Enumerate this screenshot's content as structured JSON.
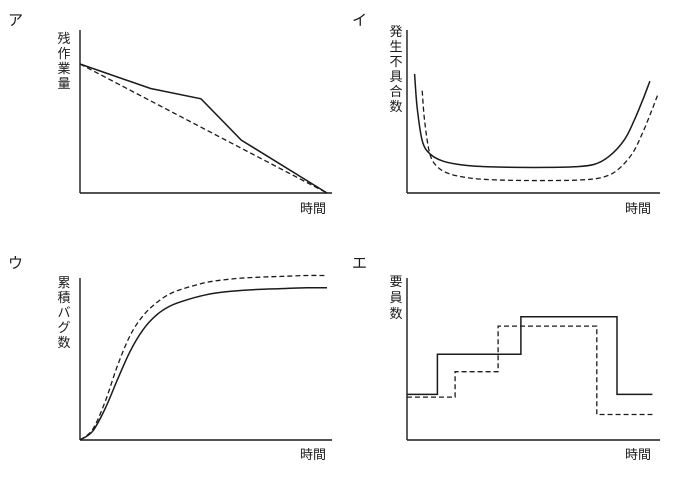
{
  "chart_data": [
    {
      "label": "ア",
      "type": "line",
      "ylabel": "残作業量",
      "xlabel": "時間",
      "xlim": [
        0,
        100
      ],
      "ylim": [
        0,
        100
      ],
      "series": [
        {
          "style": "solid",
          "x": [
            0,
            28,
            48,
            64,
            98
          ],
          "y": [
            100,
            81,
            73,
            41,
            0
          ]
        },
        {
          "style": "dashed",
          "x": [
            0,
            98
          ],
          "y": [
            100,
            0
          ]
        }
      ]
    },
    {
      "label": "イ",
      "type": "line",
      "ylabel": "発生不具合数",
      "xlabel": "時間",
      "xlim": [
        0,
        100
      ],
      "ylim": [
        0,
        100
      ],
      "series": [
        {
          "style": "solid",
          "x": [
            3,
            4,
            6,
            9,
            14,
            22,
            32,
            44,
            56,
            66,
            74,
            80,
            86,
            90,
            93.5,
            96
          ],
          "y": [
            100,
            72,
            44,
            33,
            27,
            23.5,
            22,
            21.5,
            21.5,
            22,
            24,
            31,
            45,
            62,
            80,
            94
          ]
        },
        {
          "style": "dashed",
          "x": [
            6,
            7,
            9,
            12,
            17,
            25,
            35,
            47,
            59,
            69,
            77,
            83,
            89,
            93,
            96.5,
            99
          ],
          "y": [
            86,
            60,
            33,
            22,
            16,
            12.5,
            11,
            10.5,
            10.5,
            11,
            13,
            19,
            33,
            50,
            68,
            82
          ]
        }
      ]
    },
    {
      "label": "ウ",
      "type": "line",
      "ylabel": "累積バグ数",
      "xlabel": "時間",
      "xlim": [
        0,
        100
      ],
      "ylim": [
        0,
        100
      ],
      "series": [
        {
          "style": "solid",
          "x": [
            0,
            5,
            10,
            15,
            20,
            25,
            30,
            35,
            40,
            50,
            60,
            70,
            80,
            90,
            98
          ],
          "y": [
            0,
            5,
            18,
            35,
            51,
            63,
            71,
            76,
            79,
            83,
            85,
            86,
            86.5,
            87,
            87
          ]
        },
        {
          "style": "dashed",
          "x": [
            0,
            5,
            10,
            15,
            20,
            25,
            30,
            35,
            40,
            50,
            60,
            70,
            80,
            90,
            98
          ],
          "y": [
            0,
            6,
            22,
            43,
            60,
            71,
            78,
            83,
            86,
            90,
            92,
            93,
            93.5,
            94,
            94
          ]
        }
      ]
    },
    {
      "label": "エ",
      "type": "line",
      "ylabel": "要員数",
      "xlabel": "時間",
      "xlim": [
        0,
        100
      ],
      "ylim": [
        0,
        100
      ],
      "series": [
        {
          "style": "solid",
          "x": [
            0,
            12,
            12,
            45,
            45,
            83,
            83,
            97
          ],
          "y": [
            34,
            34,
            64,
            64,
            92,
            92,
            34,
            34
          ]
        },
        {
          "style": "dashed",
          "x": [
            0,
            19,
            19,
            36,
            36,
            75,
            75,
            97
          ],
          "y": [
            32,
            32,
            51,
            51,
            85,
            85,
            19,
            19
          ]
        }
      ]
    }
  ]
}
